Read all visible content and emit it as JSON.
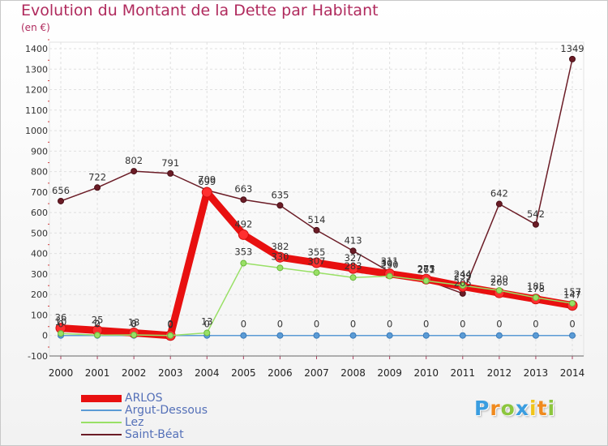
{
  "chart_data": {
    "type": "line",
    "title": "Evolution du Montant de la Dette par Habitant",
    "subtitle": "(en €)",
    "x": [
      "2000",
      "2001",
      "2002",
      "2003",
      "2004",
      "2005",
      "2006",
      "2007",
      "2008",
      "2009",
      "2010",
      "2011",
      "2012",
      "2013",
      "2014"
    ],
    "ylim": [
      -100,
      1400
    ],
    "yticks": [
      -100,
      0,
      100,
      200,
      300,
      400,
      500,
      600,
      700,
      800,
      900,
      1000,
      1100,
      1200,
      1300,
      1400
    ],
    "grid": true,
    "legend_position": "bottom-left",
    "series": [
      {
        "name": "ARLOS",
        "color": "#e81010",
        "values": [
          36,
          25,
          13,
          0,
          699,
          492,
          382,
          355,
          327,
          301,
          275,
          239,
          208,
          178,
          147
        ]
      },
      {
        "name": "Argut-Dessous",
        "color": "#5b9bd5",
        "values": [
          0,
          0,
          0,
          0,
          0,
          0,
          0,
          0,
          0,
          0,
          0,
          0,
          0,
          0,
          0
        ]
      },
      {
        "name": "Lez",
        "color": "#99e066",
        "values": [
          10,
          2,
          3,
          0,
          13,
          353,
          330,
          307,
          283,
          290,
          267,
          244,
          220,
          185,
          157
        ]
      },
      {
        "name": "Saint-Béat",
        "color": "#6b1c26",
        "values": [
          656,
          722,
          802,
          791,
          709,
          663,
          635,
          514,
          413,
          311,
          271,
          205,
          642,
          542,
          1349
        ]
      }
    ]
  },
  "brand": {
    "letters": [
      {
        "ch": "P",
        "color": "#3a9de0"
      },
      {
        "ch": "r",
        "color": "#f08a1e"
      },
      {
        "ch": "o",
        "color": "#8cc63e"
      },
      {
        "ch": "x",
        "color": "#3a9de0"
      },
      {
        "ch": "i",
        "color": "#f0c419"
      },
      {
        "ch": "t",
        "color": "#f08a1e"
      },
      {
        "ch": "i",
        "color": "#8cc63e"
      }
    ]
  }
}
